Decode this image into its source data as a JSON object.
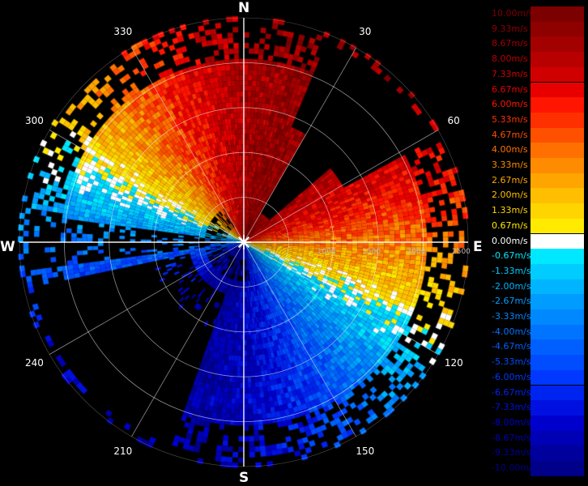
{
  "compass": {
    "north": "N",
    "south": "S",
    "east": "E",
    "west": "W"
  },
  "bearings": [
    {
      "deg": 30,
      "label": "30"
    },
    {
      "deg": 60,
      "label": "60"
    },
    {
      "deg": 120,
      "label": "120"
    },
    {
      "deg": 150,
      "label": "150"
    },
    {
      "deg": 210,
      "label": "210"
    },
    {
      "deg": 240,
      "label": "240"
    },
    {
      "deg": 300,
      "label": "300"
    },
    {
      "deg": 330,
      "label": "330"
    }
  ],
  "range_labels": [
    "1000",
    "1500",
    "2000",
    "2500"
  ],
  "colors": {
    "zero": "#ffffff",
    "positive_ramp": [
      "#ffe000",
      "#ff0000",
      "#800000"
    ],
    "negative_ramp": [
      "#00e0ff",
      "#0040ff",
      "#000080"
    ]
  },
  "legend": [
    {
      "label": "10.00m/s",
      "color": "#7d0000"
    },
    {
      "label": "9.33m/s",
      "color": "#8f0000"
    },
    {
      "label": "8.67m/s",
      "color": "#a30000"
    },
    {
      "label": "8.00m/s",
      "color": "#b80000"
    },
    {
      "label": "7.33m/s",
      "color": "#d00000"
    },
    {
      "label": "6.67m/s",
      "color": "#e80000"
    },
    {
      "label": "6.00m/s",
      "color": "#ff1500"
    },
    {
      "label": "5.33m/s",
      "color": "#ff3000"
    },
    {
      "label": "4.67m/s",
      "color": "#ff5000"
    },
    {
      "label": "4.00m/s",
      "color": "#ff7000"
    },
    {
      "label": "3.33m/s",
      "color": "#ff8c00"
    },
    {
      "label": "2.67m/s",
      "color": "#ffa500"
    },
    {
      "label": "2.00m/s",
      "color": "#ffbe00"
    },
    {
      "label": "1.33m/s",
      "color": "#ffd500"
    },
    {
      "label": "0.67m/s",
      "color": "#ffea00"
    },
    {
      "label": "0.00m/s",
      "color": "#ffffff"
    },
    {
      "label": "-0.67m/s",
      "color": "#00e8ff"
    },
    {
      "label": "-1.33m/s",
      "color": "#00ccff"
    },
    {
      "label": "-2.00m/s",
      "color": "#00b4ff"
    },
    {
      "label": "-2.67m/s",
      "color": "#009cff"
    },
    {
      "label": "-3.33m/s",
      "color": "#0088ff"
    },
    {
      "label": "-4.00m/s",
      "color": "#0074ff"
    },
    {
      "label": "-4.67m/s",
      "color": "#0060ff"
    },
    {
      "label": "-5.33m/s",
      "color": "#004cff"
    },
    {
      "label": "-6.00m/s",
      "color": "#0038ff"
    },
    {
      "label": "-6.67m/s",
      "color": "#0024f0"
    },
    {
      "label": "-7.33m/s",
      "color": "#0010e0"
    },
    {
      "label": "-8.00m/s",
      "color": "#0000cc"
    },
    {
      "label": "-8.67m/s",
      "color": "#0000b4"
    },
    {
      "label": "-9.33m/s",
      "color": "#00009c"
    },
    {
      "label": "-10.00m/s",
      "color": "#000088"
    }
  ]
}
